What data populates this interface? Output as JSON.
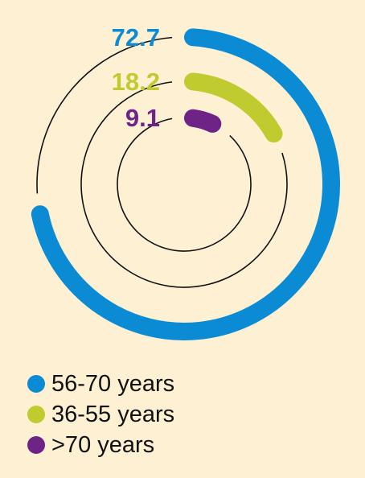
{
  "chart_data": {
    "type": "radial-bar",
    "max_value": 100,
    "series": [
      {
        "name": "56-70 years",
        "value": 72.7,
        "label": "72.7",
        "color": "#0A8BD4"
      },
      {
        "name": "36-55 years",
        "value": 18.2,
        "label": "18.2",
        "color": "#BFCB2E"
      },
      {
        "name": ">70 years",
        "value": 9.1,
        "label": "9.1",
        "color": "#6E2486"
      }
    ],
    "track_color": "#111111",
    "background": "#FDF0D3"
  },
  "legend": {
    "items": [
      {
        "label": "56-70 years",
        "color": "#0A8BD4"
      },
      {
        "label": "36-55 years",
        "color": "#BFCB2E"
      },
      {
        "label": ">70 years",
        "color": "#6E2486"
      }
    ]
  }
}
